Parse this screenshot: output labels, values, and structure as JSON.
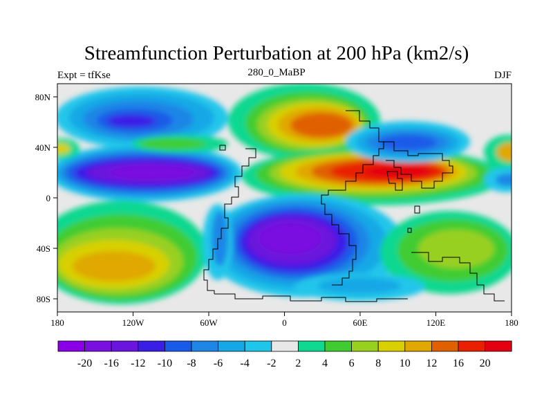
{
  "title": "Streamfunction Perturbation at 200 hPa (km2/s)",
  "subtitle_left": "Expt = tfKse",
  "subtitle_center": "280_0_MaBP",
  "subtitle_right": "DJF",
  "map": {
    "lon_ticks": [
      "180",
      "120W",
      "60W",
      "0",
      "60E",
      "120E",
      "180"
    ],
    "lat_ticks": [
      "80N",
      "40N",
      "0",
      "40S",
      "80S"
    ],
    "lon_range": [
      -180,
      180
    ],
    "lat_range": [
      -90,
      90
    ]
  },
  "colorbar": {
    "labels": [
      "-20",
      "-16",
      "-12",
      "-10",
      "-8",
      "-6",
      "-4",
      "-2",
      "2",
      "4",
      "6",
      "8",
      "10",
      "12",
      "16",
      "20"
    ],
    "colors": [
      "#8a00e6",
      "#7a10e0",
      "#6a14dd",
      "#3b1ee6",
      "#1a5ae8",
      "#1f86e6",
      "#16a8e6",
      "#20c6ea",
      "#e8e8e8",
      "#10d890",
      "#40cc30",
      "#98d020",
      "#d8d000",
      "#e0a800",
      "#e06000",
      "#e82000",
      "#e40010"
    ]
  },
  "chart_data": {
    "type": "heatmap",
    "title": "Streamfunction Perturbation at 200 hPa (km2/s)",
    "levels": [
      -20,
      -16,
      -12,
      -10,
      -8,
      -6,
      -4,
      -2,
      2,
      4,
      6,
      8,
      10,
      12,
      16,
      20
    ],
    "features": [
      {
        "lon": -105,
        "lat": 70,
        "value": -10
      },
      {
        "lon": 28,
        "lat": 65,
        "value": 13
      },
      {
        "lon": -90,
        "lat": 20,
        "value": -17
      },
      {
        "lon": 85,
        "lat": 20,
        "value": 19
      },
      {
        "lon": 30,
        "lat": -35,
        "value": -17
      },
      {
        "lon": -130,
        "lat": -50,
        "value": 10
      },
      {
        "lon": 120,
        "lat": -40,
        "value": 5
      },
      {
        "lon": 90,
        "lat": 45,
        "value": -9
      },
      {
        "lon": -55,
        "lat": 42,
        "value": 5
      },
      {
        "lon": 175,
        "lat": 40,
        "value": 11
      },
      {
        "lon": 55,
        "lat": -62,
        "value": -4
      }
    ]
  }
}
